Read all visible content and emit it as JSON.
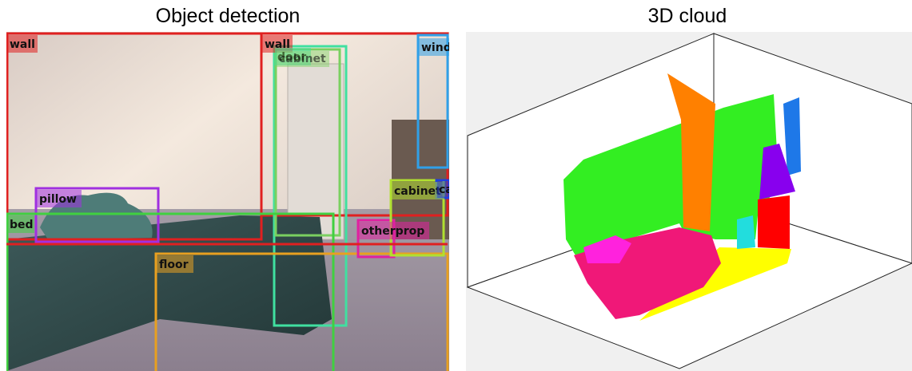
{
  "panels": [
    {
      "title": "Object detection",
      "boxes": [
        {
          "label": "wall"
        },
        {
          "label": "wall"
        },
        {
          "label": "window"
        },
        {
          "label": "door"
        },
        {
          "label": "cabinet"
        },
        {
          "label": "pillow"
        },
        {
          "label": "bed"
        },
        {
          "label": "floor"
        },
        {
          "label": "otherprop"
        },
        {
          "label": "cabinet"
        },
        {
          "label": "cabinet"
        }
      ]
    },
    {
      "title": "3D cloud"
    }
  ]
}
